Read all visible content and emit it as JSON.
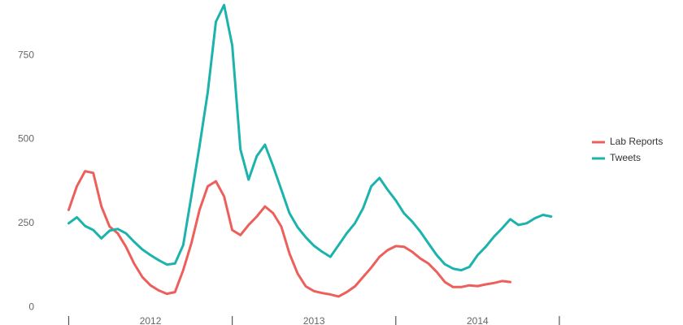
{
  "chart_data": {
    "type": "line",
    "x": [
      2011.5,
      2011.55,
      2011.6,
      2011.65,
      2011.7,
      2011.75,
      2011.8,
      2011.85,
      2011.9,
      2011.95,
      2012.0,
      2012.05,
      2012.1,
      2012.15,
      2012.2,
      2012.25,
      2012.3,
      2012.35,
      2012.4,
      2012.45,
      2012.5,
      2012.55,
      2012.6,
      2012.65,
      2012.7,
      2012.75,
      2012.8,
      2012.85,
      2012.9,
      2012.95,
      2013.0,
      2013.05,
      2013.1,
      2013.15,
      2013.2,
      2013.25,
      2013.3,
      2013.35,
      2013.4,
      2013.45,
      2013.5,
      2013.55,
      2013.6,
      2013.65,
      2013.7,
      2013.75,
      2013.8,
      2013.85,
      2013.9,
      2013.95,
      2014.0,
      2014.05,
      2014.1,
      2014.15,
      2014.2,
      2014.25,
      2014.3,
      2014.35,
      2014.4,
      2014.45
    ],
    "series": [
      {
        "name": "Lab Reports",
        "color": "#ec5f5a",
        "values": [
          290,
          360,
          405,
          400,
          300,
          240,
          220,
          180,
          130,
          90,
          65,
          50,
          40,
          45,
          110,
          190,
          290,
          360,
          375,
          330,
          230,
          215,
          245,
          270,
          300,
          280,
          240,
          160,
          100,
          62,
          48,
          42,
          38,
          32,
          45,
          62,
          90,
          118,
          150,
          170,
          182,
          180,
          165,
          145,
          130,
          105,
          75,
          60,
          60,
          65,
          63,
          68,
          72,
          78,
          75,
          null,
          null,
          null,
          null,
          null
        ]
      },
      {
        "name": "Tweets",
        "color": "#1db3ad",
        "values": [
          250,
          268,
          242,
          230,
          205,
          228,
          233,
          220,
          195,
          172,
          155,
          140,
          127,
          130,
          185,
          330,
          480,
          640,
          850,
          900,
          780,
          470,
          380,
          450,
          484,
          420,
          350,
          280,
          238,
          208,
          183,
          165,
          150,
          185,
          220,
          250,
          295,
          360,
          385,
          350,
          318,
          280,
          255,
          225,
          190,
          155,
          128,
          115,
          110,
          120,
          155,
          180,
          210,
          235,
          262,
          245,
          250,
          265,
          275,
          270
        ]
      }
    ],
    "xlim": [
      2011.08,
      2014.56
    ],
    "xticks": [
      2012,
      2013,
      2014
    ],
    "xminorticks": [
      2011.5,
      2012.5,
      2013.5,
      2014.5
    ],
    "ylim": [
      -53,
      915
    ],
    "yticks": [
      0,
      250,
      500,
      750
    ],
    "grid": false,
    "legend": "right"
  }
}
